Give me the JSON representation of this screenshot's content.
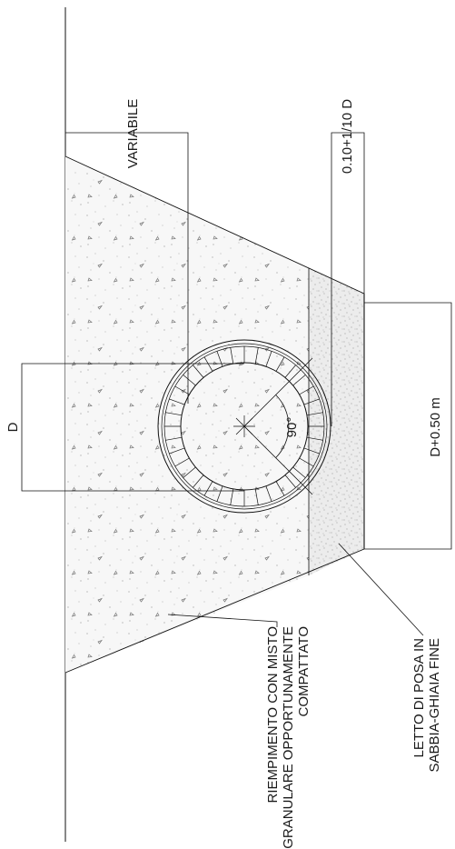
{
  "drawing": {
    "labels": {
      "variabile": "VARIABILE",
      "bedding_depth": "0.10+1/10 D",
      "pipe_diameter": "D",
      "angle": "90°",
      "trench_width": "D+0.50 m",
      "backfill_line1": "RIEMPIMENTO CON MISTO",
      "backfill_line2": "GRANULARE OPPORTUNAMENTE",
      "backfill_line3": "COMPATTATO",
      "bedding_line1": "LETTO DI POSA IN",
      "bedding_line2": "SABBIA-GHIAIA FINE"
    },
    "colors": {
      "line": "#111111",
      "backfill_fill": "#f7f7f7",
      "bedding_fill": "#ececec",
      "speckle": "#8a8a8a"
    }
  }
}
